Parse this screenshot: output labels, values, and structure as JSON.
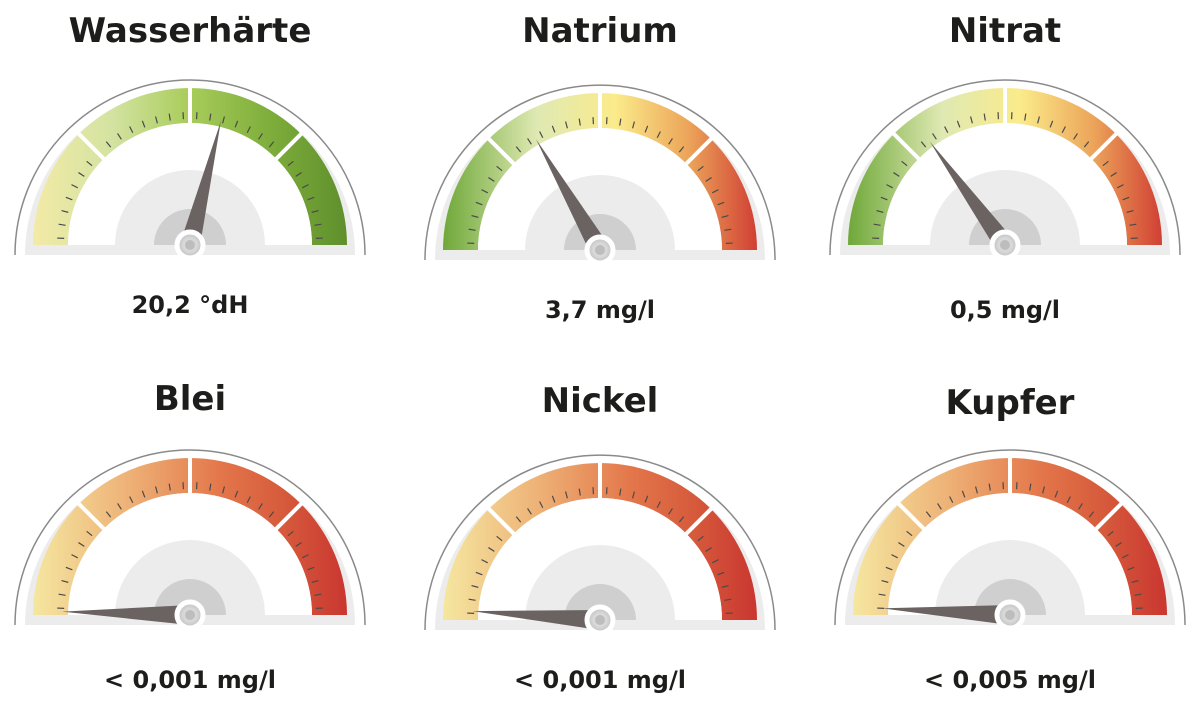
{
  "gauges": [
    {
      "title": "Wasserhärte",
      "value": "20,2 °dH"
    },
    {
      "title": "Natrium",
      "value": "3,7 mg/l"
    },
    {
      "title": "Nitrat",
      "value": "0,5 mg/l"
    },
    {
      "title": "Blei",
      "value": "< 0,001 mg/l"
    },
    {
      "title": "Nickel",
      "value": "< 0,001 mg/l"
    },
    {
      "title": "Kupfer",
      "value": "< 0,005 mg/l"
    }
  ]
}
